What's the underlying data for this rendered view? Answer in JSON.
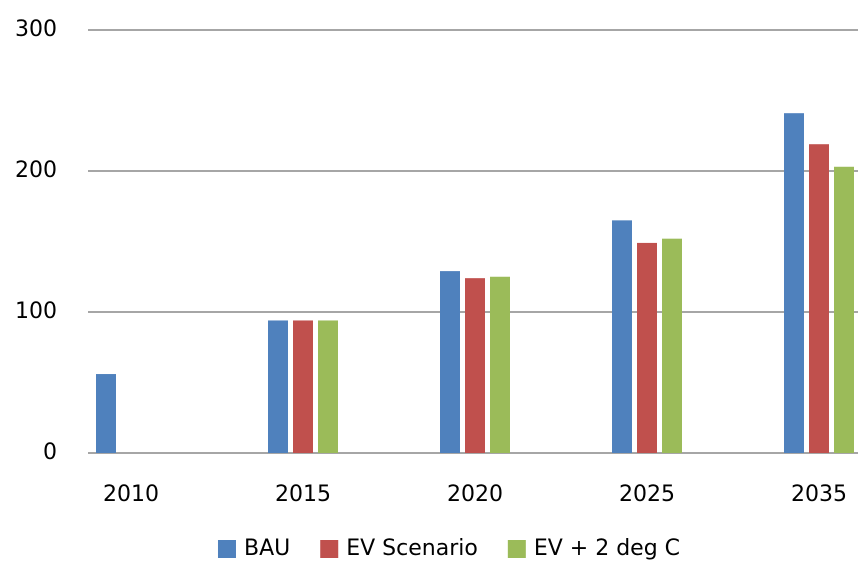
{
  "chart_data": {
    "type": "bar",
    "categories": [
      "2010",
      "2015",
      "2020",
      "2025",
      "2035"
    ],
    "series": [
      {
        "name": "BAU",
        "color": "#4f81bd",
        "values": [
          56,
          94,
          129,
          165,
          241
        ]
      },
      {
        "name": "EV Scenario",
        "color": "#c0504d",
        "values": [
          null,
          94,
          124,
          149,
          219
        ]
      },
      {
        "name": "EV + 2 deg C",
        "color": "#9bbb59",
        "values": [
          null,
          94,
          125,
          152,
          203
        ]
      }
    ],
    "ylim": [
      0,
      300
    ],
    "yticks": [
      0,
      100,
      200,
      300
    ],
    "grid": true,
    "legend": "bottom"
  }
}
